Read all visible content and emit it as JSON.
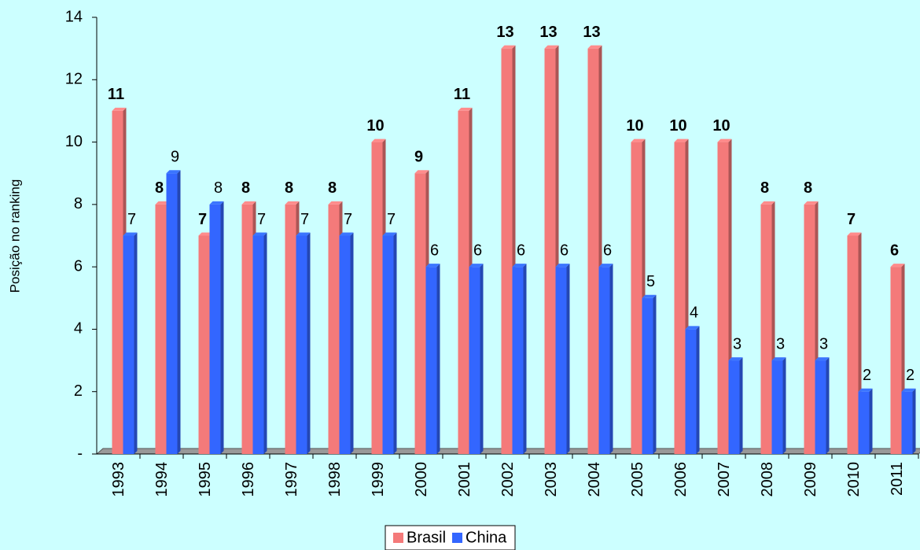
{
  "chart_data": {
    "type": "bar",
    "y_label": "Posição no ranking",
    "categories": [
      "1993",
      "1994",
      "1995",
      "1996",
      "1997",
      "1998",
      "1999",
      "2000",
      "2001",
      "2002",
      "2003",
      "2004",
      "2005",
      "2006",
      "2007",
      "2008",
      "2009",
      "2010",
      "2011"
    ],
    "series": [
      {
        "name": "Brasil",
        "color": "#f47a7a",
        "values": [
          11,
          8,
          7,
          8,
          8,
          8,
          10,
          9,
          11,
          13,
          13,
          13,
          10,
          10,
          10,
          8,
          8,
          7,
          6
        ]
      },
      {
        "name": "China",
        "color": "#3366ff",
        "values": [
          7,
          9,
          8,
          7,
          7,
          7,
          7,
          6,
          6,
          6,
          6,
          6,
          5,
          4,
          3,
          3,
          3,
          2,
          2
        ]
      }
    ],
    "ylim": [
      0,
      14
    ],
    "yticks": [
      {
        "value": 0,
        "label": "-"
      },
      2,
      4,
      6,
      8,
      10,
      12,
      14
    ],
    "grid": false,
    "legend": "bottom"
  }
}
